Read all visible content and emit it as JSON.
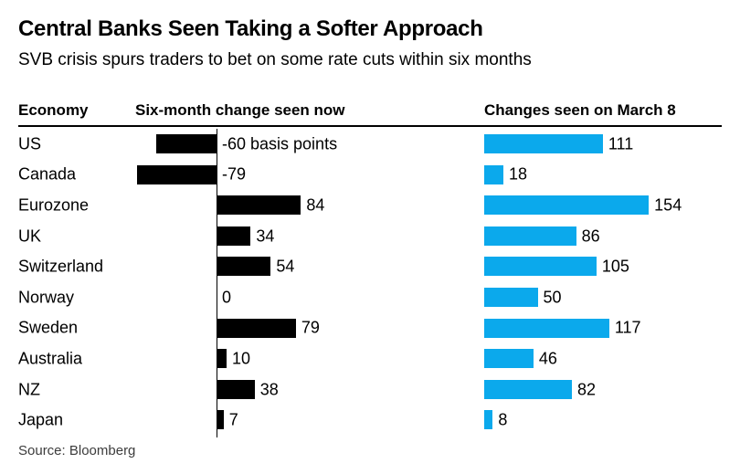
{
  "chart_data": {
    "type": "bar",
    "orientation": "horizontal",
    "title": "Central Banks Seen Taking a Softer Approach",
    "subtitle": "SVB crisis spurs traders to bet on some rate cuts within six months",
    "economy_column_header": "Economy",
    "categories": [
      "US",
      "Canada",
      "Eurozone",
      "UK",
      "Switzerland",
      "Norway",
      "Sweden",
      "Australia",
      "NZ",
      "Japan"
    ],
    "series": [
      {
        "name": "Six-month change seen now",
        "color": "#000000",
        "values": [
          -60,
          -79,
          84,
          34,
          54,
          0,
          79,
          10,
          38,
          7
        ],
        "labels": [
          "-60 basis points",
          "-79",
          "84",
          "34",
          "54",
          "0",
          "79",
          "10",
          "38",
          "7"
        ]
      },
      {
        "name": "Changes seen on March 8",
        "color": "#0BA9EC",
        "values": [
          111,
          18,
          154,
          86,
          105,
          50,
          117,
          46,
          82,
          8
        ],
        "labels": [
          "111",
          "18",
          "154",
          "86",
          "105",
          "50",
          "117",
          "46",
          "82",
          "8"
        ]
      }
    ],
    "source": "Source: Bloomberg",
    "grid": false,
    "legend_position": "column-headers",
    "unit": "basis points"
  }
}
